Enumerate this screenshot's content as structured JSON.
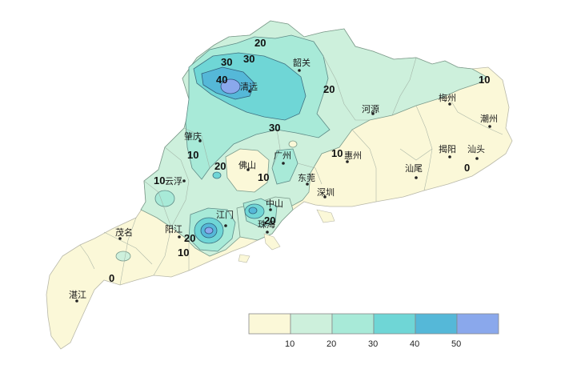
{
  "map": {
    "cities": [
      "韶关",
      "清远",
      "河源",
      "梅州",
      "潮州",
      "肇庆",
      "广州",
      "惠州",
      "揭阳",
      "汕头",
      "佛山",
      "云浮",
      "东莞",
      "汕尾",
      "深圳",
      "江门",
      "中山",
      "珠海",
      "茂名",
      "阳江",
      "湛江"
    ],
    "contour_labels": [
      "20",
      "30",
      "30",
      "40",
      "20",
      "30",
      "10",
      "10",
      "20",
      "10",
      "10",
      "10",
      "20",
      "20",
      "10",
      "0",
      "0"
    ]
  },
  "legend": {
    "ticks": [
      "10",
      "20",
      "30",
      "40",
      "50"
    ],
    "colors": [
      "#fbf8d8",
      "#cdf0dc",
      "#a8ead8",
      "#6fd6d6",
      "#55b8d8",
      "#8aa8ec"
    ]
  }
}
